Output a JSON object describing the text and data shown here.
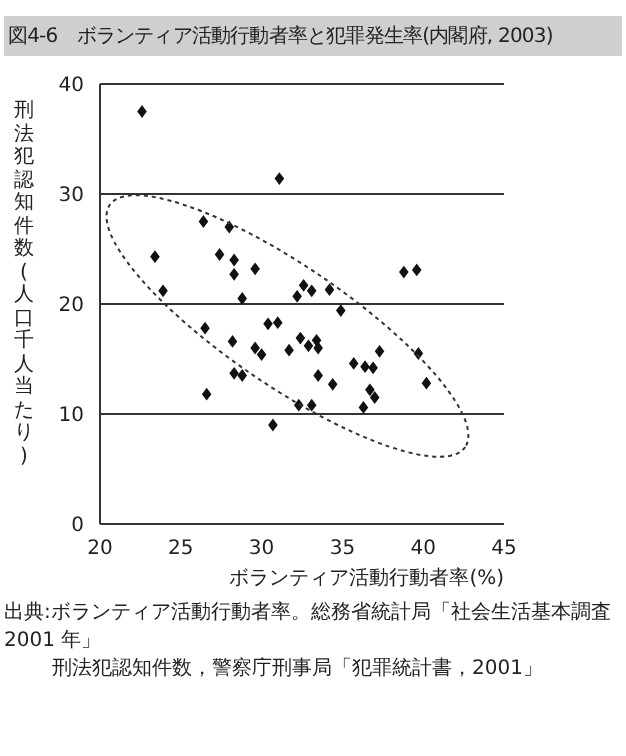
{
  "chart_data": {
    "type": "scatter",
    "title": "図4-6　ボランティア活動行動者率と犯罪発生率(内閣府, 2003)",
    "xlabel": "ボランティア活動行動者率(%)",
    "ylabel": "刑法犯認知件数(人口千人当たり)",
    "annotations": [
      "出典:ボランティア活動行動者率。総務省統計局「社会生活基本調査 2001 年」",
      "刑法犯認知件数，警察庁刑事局「犯罪統計書，2001」"
    ],
    "x": [
      22.6,
      23.4,
      23.9,
      26.4,
      26.5,
      26.6,
      27.4,
      28.0,
      28.3,
      28.3,
      28.2,
      28.3,
      28.8,
      28.8,
      29.6,
      29.6,
      30.0,
      30.4,
      30.7,
      31.0,
      31.1,
      31.7,
      32.2,
      32.3,
      32.4,
      32.6,
      32.9,
      33.1,
      33.1,
      33.4,
      33.5,
      33.5,
      34.2,
      34.4,
      34.9,
      35.7,
      36.3,
      36.4,
      36.7,
      36.9,
      37.0,
      37.3,
      38.8,
      39.6,
      39.7,
      40.2
    ],
    "values": [
      37.5,
      24.3,
      21.2,
      27.5,
      17.8,
      11.8,
      24.5,
      27,
      24,
      22.7,
      16.6,
      13.7,
      13.5,
      20.5,
      23.2,
      16,
      15.4,
      18.2,
      9,
      18.3,
      31.4,
      15.8,
      20.7,
      10.8,
      16.9,
      21.7,
      16.2,
      21.2,
      10.8,
      16.7,
      16,
      13.5,
      21.3,
      12.7,
      19.4,
      14.6,
      10.6,
      14.3,
      12.2,
      14.2,
      11.5,
      15.7,
      22.9,
      23.1,
      15.5,
      12.8
    ],
    "color": "#111111",
    "marker": "diamond",
    "xlim": [
      20,
      45
    ],
    "xticks": [
      20,
      25,
      30,
      35,
      40,
      45
    ],
    "ylim": [
      0,
      40
    ],
    "yticks": [
      0,
      10,
      20,
      30,
      40
    ],
    "grid": "y"
  }
}
